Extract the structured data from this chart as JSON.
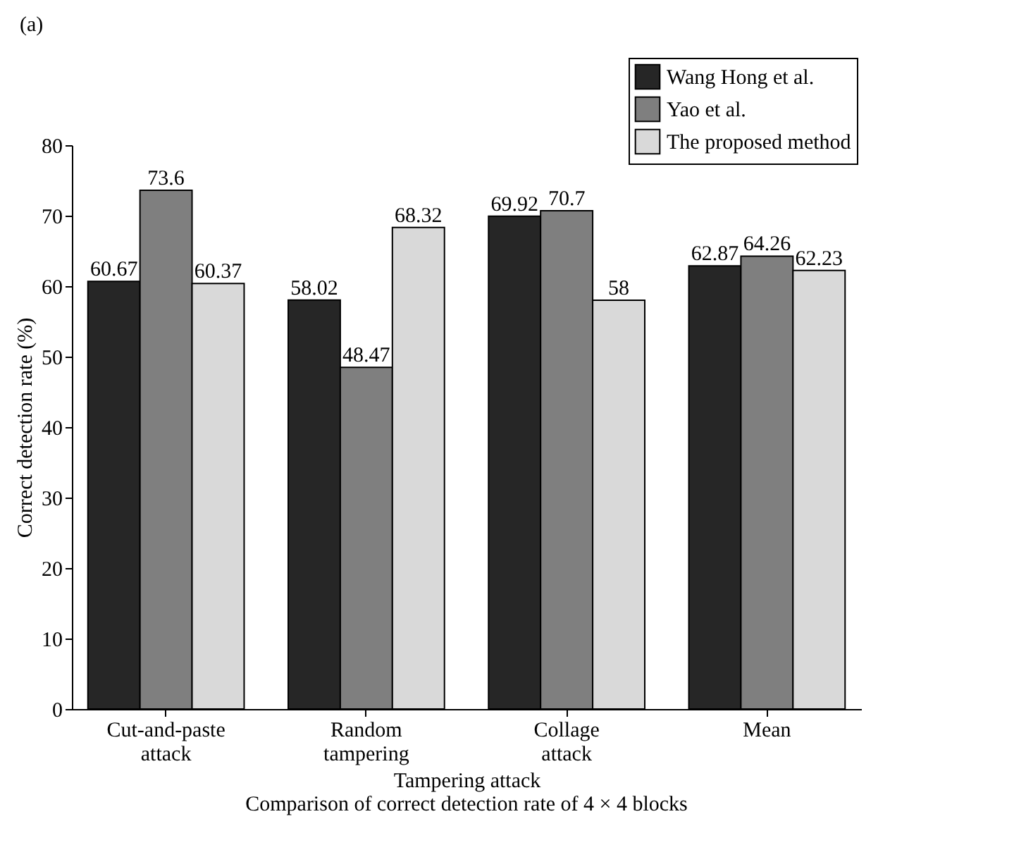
{
  "chart_data": {
    "type": "bar",
    "title": "Comparison of correct detection rate of 4 × 4 blocks",
    "xlabel": "Tampering attack",
    "ylabel": "Correct detection rate (%)",
    "annotations": [
      "(a)"
    ],
    "categories": [
      "Cut-and-paste attack",
      "Random tampering",
      "Collage attack",
      "Mean"
    ],
    "series": [
      {
        "name": "Wang Hong et al.",
        "color": "#262626",
        "values": [
          60.67,
          58.02,
          69.92,
          62.87
        ]
      },
      {
        "name": "Yao et al.",
        "color": "#7f7f7f",
        "values": [
          73.6,
          48.47,
          70.7,
          64.26
        ]
      },
      {
        "name": "The proposed method",
        "color": "#d9d9d9",
        "values": [
          60.37,
          68.32,
          58,
          62.23
        ]
      }
    ],
    "ylim": [
      0,
      80
    ],
    "yticks": [
      0,
      10,
      20,
      30,
      40,
      50,
      60,
      70,
      80
    ],
    "data_labels": true,
    "legend": "top right",
    "grid": false
  }
}
